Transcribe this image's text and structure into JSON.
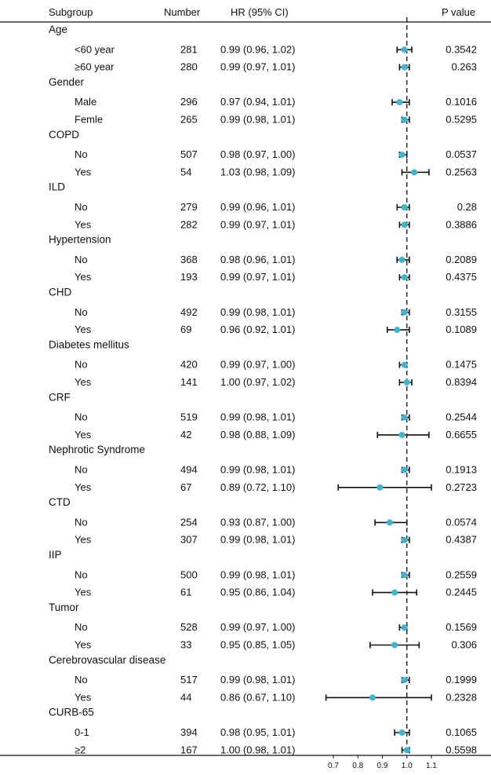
{
  "chart_data": {
    "type": "forest",
    "headers": {
      "subgroup": "Subgroup",
      "number": "Number",
      "hr": "HR (95% CI)",
      "p": "P value"
    },
    "reference_line": 1.0,
    "xlim": [
      0.65,
      1.12
    ],
    "xticks": [
      "0.7",
      "0.8",
      "0.9",
      "1.0",
      "1.1"
    ],
    "xtick_values": [
      0.7,
      0.8,
      0.9,
      1.0,
      1.1
    ],
    "groups": [
      {
        "name": "Age",
        "rows": [
          {
            "label": "<60 year",
            "n": "281",
            "hr_text": "0.99 (0.96, 1.02)",
            "hr": 0.99,
            "lo": 0.96,
            "hi": 1.02,
            "p": "0.3542"
          },
          {
            "label": "≥60 year",
            "n": "280",
            "hr_text": "0.99 (0.97, 1.01)",
            "hr": 0.99,
            "lo": 0.97,
            "hi": 1.01,
            "p": "0.263"
          }
        ]
      },
      {
        "name": "Gender",
        "rows": [
          {
            "label": "Male",
            "n": "296",
            "hr_text": "0.97 (0.94, 1.01)",
            "hr": 0.97,
            "lo": 0.94,
            "hi": 1.01,
            "p": "0.1016"
          },
          {
            "label": "Femle",
            "n": "265",
            "hr_text": "0.99 (0.98, 1.01)",
            "hr": 0.99,
            "lo": 0.98,
            "hi": 1.01,
            "p": "0.5295"
          }
        ]
      },
      {
        "name": "COPD",
        "rows": [
          {
            "label": "No",
            "n": "507",
            "hr_text": "0.98 (0.97, 1.00)",
            "hr": 0.98,
            "lo": 0.97,
            "hi": 1.0,
            "p": "0.0537"
          },
          {
            "label": "Yes",
            "n": "54",
            "hr_text": "1.03 (0.98, 1.09)",
            "hr": 1.03,
            "lo": 0.98,
            "hi": 1.09,
            "p": "0.2563"
          }
        ]
      },
      {
        "name": "ILD",
        "rows": [
          {
            "label": "No",
            "n": "279",
            "hr_text": "0.99 (0.96, 1.01)",
            "hr": 0.99,
            "lo": 0.96,
            "hi": 1.01,
            "p": "0.28"
          },
          {
            "label": "Yes",
            "n": "282",
            "hr_text": "0.99 (0.97, 1.01)",
            "hr": 0.99,
            "lo": 0.97,
            "hi": 1.01,
            "p": "0.3886"
          }
        ]
      },
      {
        "name": "Hypertension",
        "rows": [
          {
            "label": "No",
            "n": "368",
            "hr_text": "0.98 (0.96, 1.01)",
            "hr": 0.98,
            "lo": 0.96,
            "hi": 1.01,
            "p": "0.2089"
          },
          {
            "label": "Yes",
            "n": "193",
            "hr_text": "0.99 (0.97, 1.01)",
            "hr": 0.99,
            "lo": 0.97,
            "hi": 1.01,
            "p": "0.4375"
          }
        ]
      },
      {
        "name": "CHD",
        "rows": [
          {
            "label": "No",
            "n": "492",
            "hr_text": "0.99 (0.98, 1.01)",
            "hr": 0.99,
            "lo": 0.98,
            "hi": 1.01,
            "p": "0.3155"
          },
          {
            "label": "Yes",
            "n": "69",
            "hr_text": "0.96 (0.92, 1.01)",
            "hr": 0.96,
            "lo": 0.92,
            "hi": 1.01,
            "p": "0.1089"
          }
        ]
      },
      {
        "name": "Diabetes mellitus",
        "rows": [
          {
            "label": "No",
            "n": "420",
            "hr_text": "0.99 (0.97, 1.00)",
            "hr": 0.99,
            "lo": 0.97,
            "hi": 1.0,
            "p": "0.1475"
          },
          {
            "label": "Yes",
            "n": "141",
            "hr_text": "1.00 (0.97, 1.02)",
            "hr": 1.0,
            "lo": 0.97,
            "hi": 1.02,
            "p": "0.8394"
          }
        ]
      },
      {
        "name": "CRF",
        "rows": [
          {
            "label": "No",
            "n": "519",
            "hr_text": "0.99 (0.98, 1.01)",
            "hr": 0.99,
            "lo": 0.98,
            "hi": 1.01,
            "p": "0.2544"
          },
          {
            "label": "Yes",
            "n": "42",
            "hr_text": "0.98 (0.88, 1.09)",
            "hr": 0.98,
            "lo": 0.88,
            "hi": 1.09,
            "p": "0.6655"
          }
        ]
      },
      {
        "name": "Nephrotic Syndrome",
        "rows": [
          {
            "label": "No",
            "n": "494",
            "hr_text": "0.99 (0.98, 1.01)",
            "hr": 0.99,
            "lo": 0.98,
            "hi": 1.01,
            "p": "0.1913"
          },
          {
            "label": "Yes",
            "n": "67",
            "hr_text": "0.89 (0.72, 1.10)",
            "hr": 0.89,
            "lo": 0.72,
            "hi": 1.1,
            "p": "0.2723"
          }
        ]
      },
      {
        "name": "CTD",
        "rows": [
          {
            "label": "No",
            "n": "254",
            "hr_text": "0.93 (0.87, 1.00)",
            "hr": 0.93,
            "lo": 0.87,
            "hi": 1.0,
            "p": "0.0574"
          },
          {
            "label": "Yes",
            "n": "307",
            "hr_text": "0.99 (0.98, 1.01)",
            "hr": 0.99,
            "lo": 0.98,
            "hi": 1.01,
            "p": "0.4387"
          }
        ]
      },
      {
        "name": "IIP",
        "rows": [
          {
            "label": "No",
            "n": "500",
            "hr_text": "0.99 (0.98, 1.01)",
            "hr": 0.99,
            "lo": 0.98,
            "hi": 1.01,
            "p": "0.2559"
          },
          {
            "label": "Yes",
            "n": "61",
            "hr_text": "0.95 (0.86, 1.04)",
            "hr": 0.95,
            "lo": 0.86,
            "hi": 1.04,
            "p": "0.2445"
          }
        ]
      },
      {
        "name": "Tumor",
        "rows": [
          {
            "label": "No",
            "n": "528",
            "hr_text": "0.99 (0.97, 1.00)",
            "hr": 0.99,
            "lo": 0.97,
            "hi": 1.0,
            "p": "0.1569"
          },
          {
            "label": "Yes",
            "n": "33",
            "hr_text": "0.95 (0.85, 1.05)",
            "hr": 0.95,
            "lo": 0.85,
            "hi": 1.05,
            "p": "0.306"
          }
        ]
      },
      {
        "name": "Cerebrovascular disease",
        "rows": [
          {
            "label": "No",
            "n": "517",
            "hr_text": "0.99 (0.98, 1.01)",
            "hr": 0.99,
            "lo": 0.98,
            "hi": 1.01,
            "p": "0.1999"
          },
          {
            "label": "Yes",
            "n": "44",
            "hr_text": "0.86 (0.67, 1.10)",
            "hr": 0.86,
            "lo": 0.67,
            "hi": 1.1,
            "p": "0.2328"
          }
        ]
      },
      {
        "name": "CURB-65",
        "rows": [
          {
            "label": "0-1",
            "n": "394",
            "hr_text": "0.98 (0.95, 1.01)",
            "hr": 0.98,
            "lo": 0.95,
            "hi": 1.01,
            "p": "0.1065"
          },
          {
            "label": "≥2",
            "n": "167",
            "hr_text": "1.00 (0.98, 1.01)",
            "hr": 1.0,
            "lo": 0.98,
            "hi": 1.01,
            "p": "0.5598"
          }
        ]
      }
    ],
    "colors": {
      "point": "#3fb6d1",
      "line": "#111111"
    }
  }
}
